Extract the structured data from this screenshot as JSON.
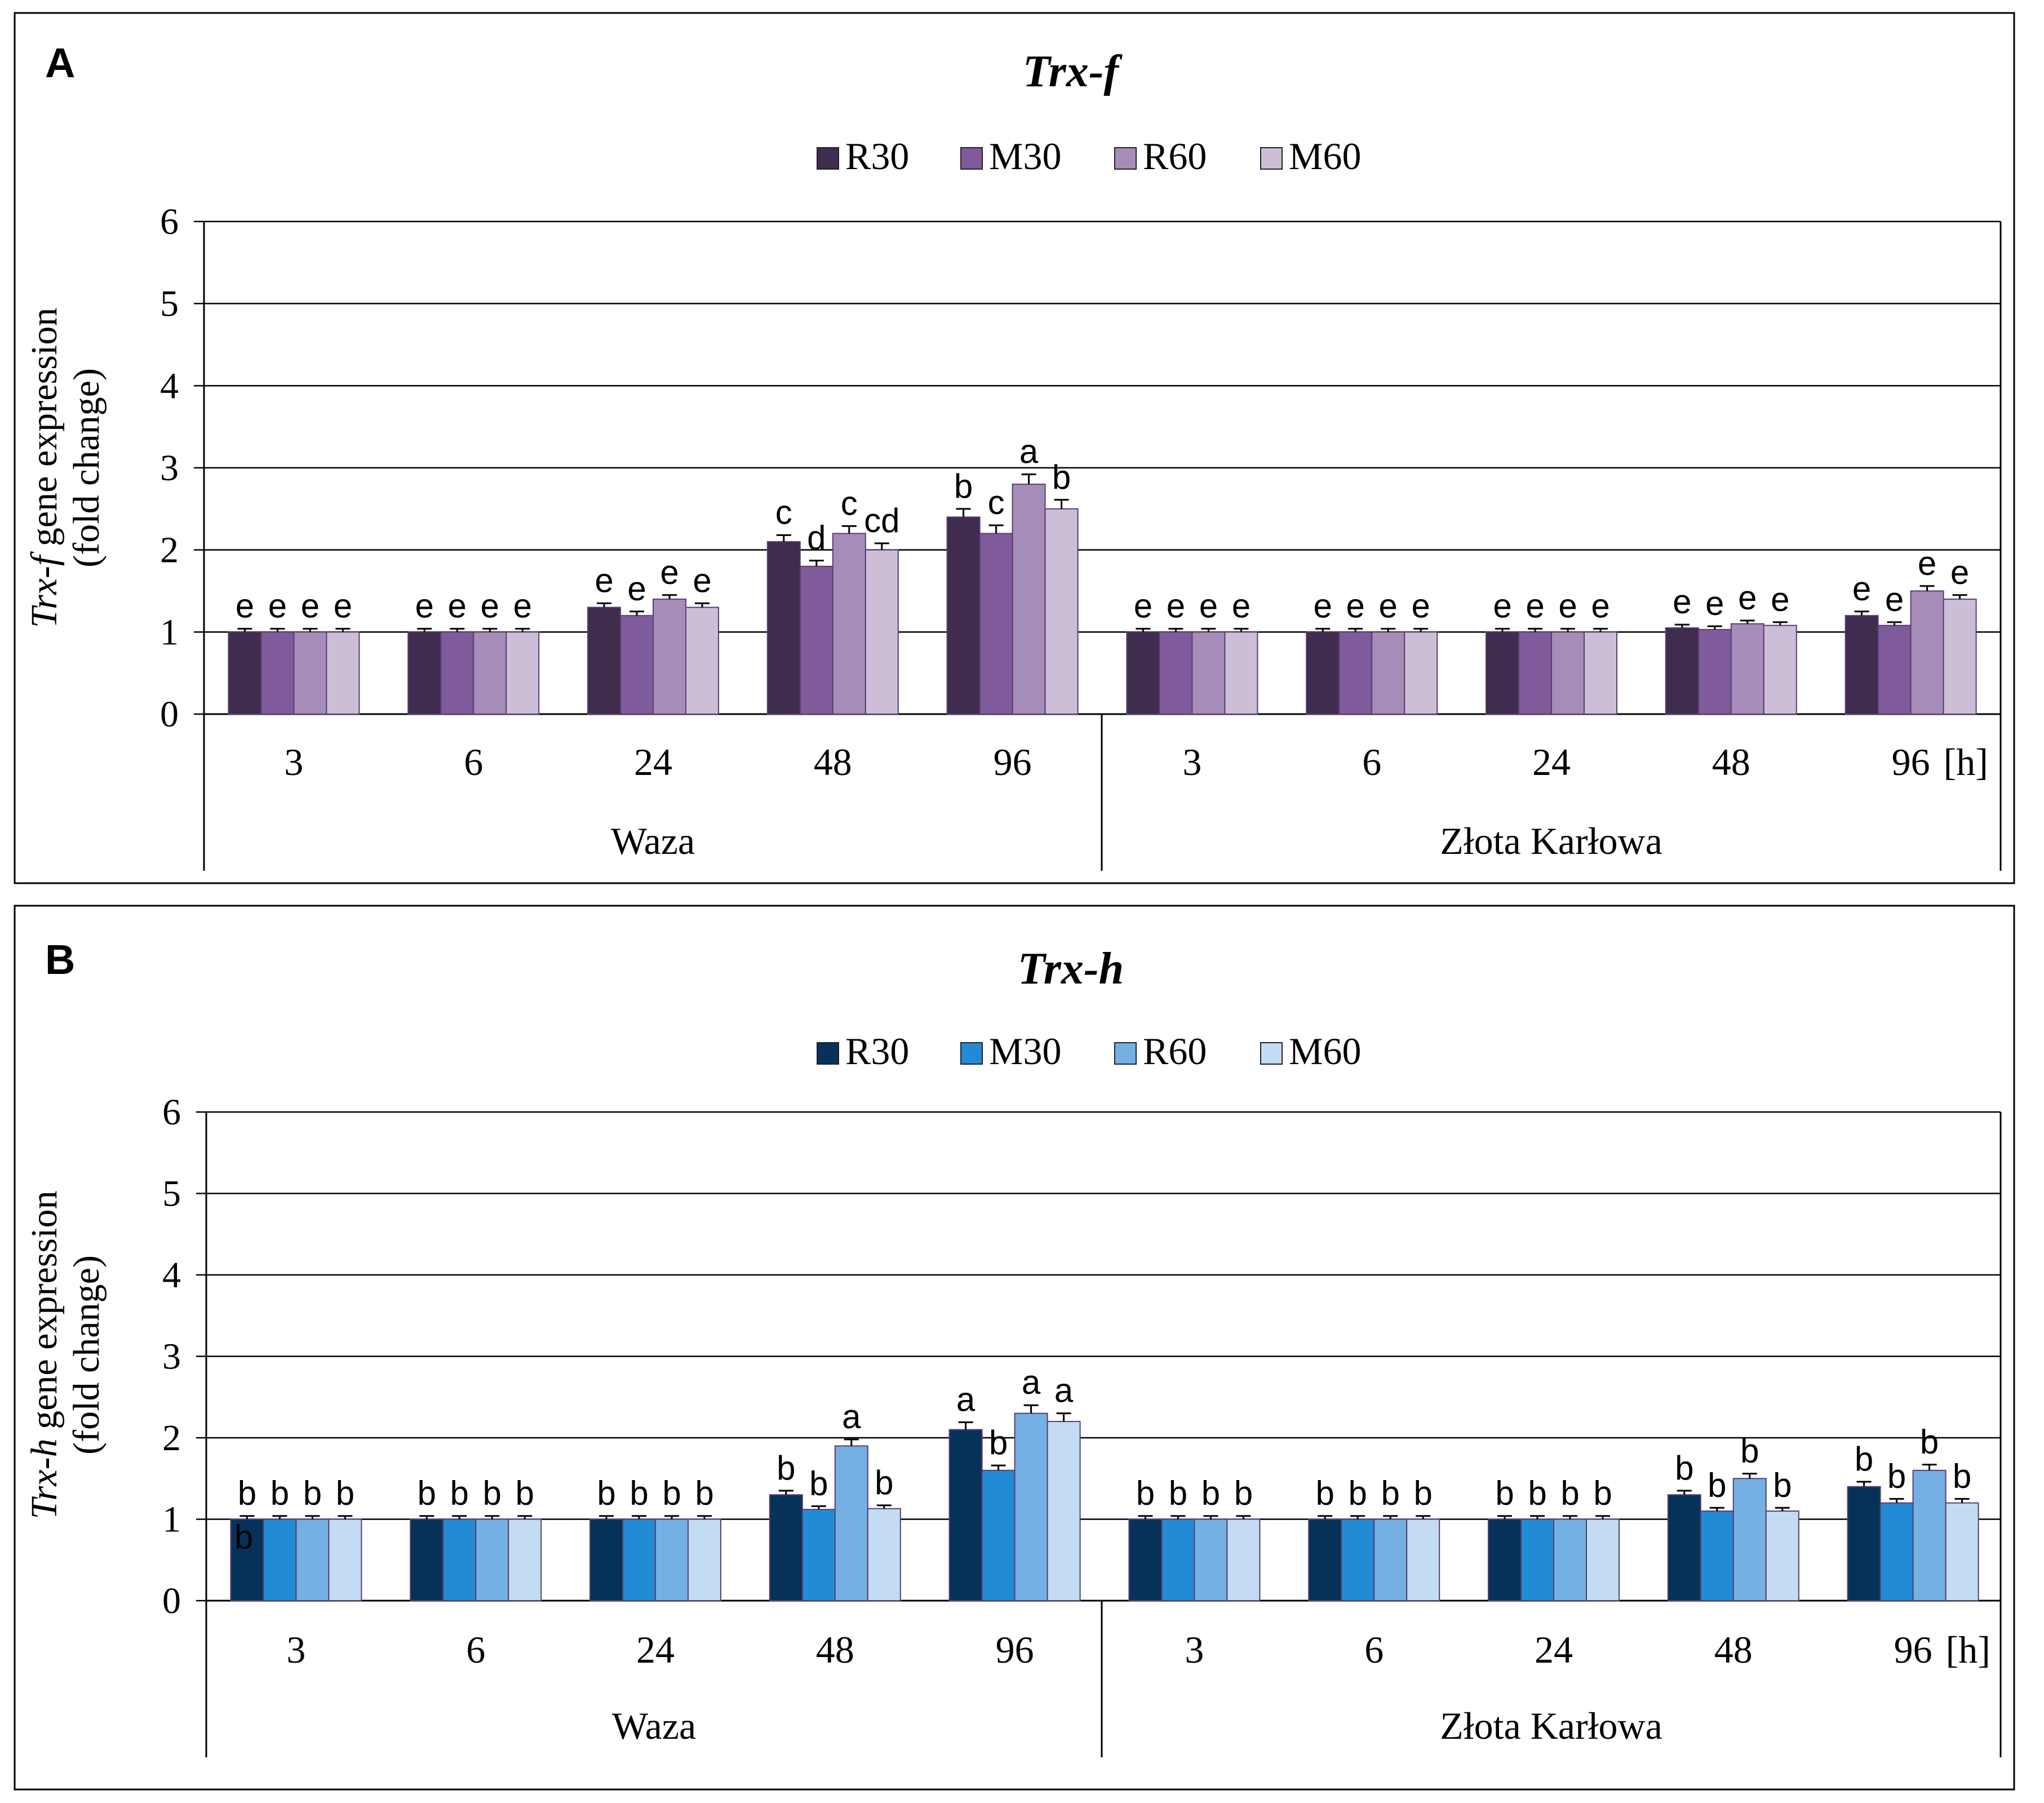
{
  "chart_data": [
    {
      "type": "bar",
      "panel_label": "A",
      "title": "Trx-f",
      "ylabel_italic": "Trx-f",
      "ylabel_rest": " gene expression",
      "ylabel_line2": "(fold change)",
      "ylim": [
        0,
        6
      ],
      "yticks": [
        "0",
        "1",
        "2",
        "3",
        "4",
        "5",
        "6"
      ],
      "grid": true,
      "legend_position": "top-center",
      "time_ticks": [
        "3",
        "6",
        "24",
        "48",
        "96",
        "3",
        "6",
        "24",
        "48",
        "96"
      ],
      "time_unit": "[h]",
      "groups": [
        "Waza",
        "Złota Karłowa"
      ],
      "series": [
        {
          "name": "R30",
          "color": "#3f2c4e",
          "values": [
            1.0,
            1.0,
            1.3,
            2.1,
            2.4,
            1.0,
            1.0,
            1.0,
            1.05,
            1.2
          ],
          "errors": [
            0.04,
            0.04,
            0.05,
            0.08,
            0.1,
            0.04,
            0.04,
            0.04,
            0.04,
            0.05
          ],
          "letters": [
            "e",
            "e",
            "e",
            "c",
            "b",
            "e",
            "e",
            "e",
            "e",
            "e"
          ]
        },
        {
          "name": "M30",
          "color": "#7f5b9c",
          "values": [
            1.0,
            1.0,
            1.2,
            1.8,
            2.2,
            1.0,
            1.0,
            1.0,
            1.03,
            1.08
          ],
          "errors": [
            0.04,
            0.04,
            0.05,
            0.07,
            0.1,
            0.04,
            0.04,
            0.04,
            0.04,
            0.04
          ],
          "letters": [
            "e",
            "e",
            "e",
            "d",
            "c",
            "e",
            "e",
            "e",
            "e",
            "e"
          ]
        },
        {
          "name": "R60",
          "color": "#a68db9",
          "values": [
            1.0,
            1.0,
            1.4,
            2.2,
            2.8,
            1.0,
            1.0,
            1.0,
            1.1,
            1.5
          ],
          "errors": [
            0.04,
            0.04,
            0.05,
            0.09,
            0.12,
            0.04,
            0.04,
            0.04,
            0.04,
            0.06
          ],
          "letters": [
            "e",
            "e",
            "e",
            "c",
            "a",
            "e",
            "e",
            "e",
            "e",
            "e"
          ]
        },
        {
          "name": "M60",
          "color": "#cdbed8",
          "values": [
            1.0,
            1.0,
            1.3,
            2.0,
            2.5,
            1.0,
            1.0,
            1.0,
            1.08,
            1.4
          ],
          "errors": [
            0.04,
            0.04,
            0.05,
            0.08,
            0.11,
            0.04,
            0.04,
            0.04,
            0.04,
            0.05
          ],
          "letters": [
            "e",
            "e",
            "e",
            "cd",
            "b",
            "e",
            "e",
            "e",
            "e",
            "e"
          ]
        }
      ]
    },
    {
      "type": "bar",
      "panel_label": "B",
      "title": "Trx-h",
      "ylabel_italic": "Trx-h",
      "ylabel_rest": " gene expression",
      "ylabel_line2": "(fold change)",
      "ylim": [
        0,
        6
      ],
      "yticks": [
        "0",
        "1",
        "2",
        "3",
        "4",
        "5",
        "6"
      ],
      "grid": true,
      "legend_position": "top-center",
      "time_ticks": [
        "3",
        "6",
        "24",
        "48",
        "96",
        "3",
        "6",
        "24",
        "48",
        "96"
      ],
      "time_unit": "[h]",
      "groups": [
        "Waza",
        "Złota Karłowa"
      ],
      "series": [
        {
          "name": "R30",
          "color": "#06325a",
          "values": [
            1.0,
            1.0,
            1.0,
            1.3,
            2.1,
            1.0,
            1.0,
            1.0,
            1.3,
            1.4
          ],
          "errors": [
            0.04,
            0.04,
            0.04,
            0.05,
            0.09,
            0.04,
            0.04,
            0.04,
            0.05,
            0.06
          ],
          "letters": [
            "b",
            "b",
            "b",
            "b",
            "a",
            "b",
            "b",
            "b",
            "b",
            "b"
          ]
        },
        {
          "name": "M30",
          "color": "#218bd6",
          "values": [
            1.0,
            1.0,
            1.0,
            1.12,
            1.6,
            1.0,
            1.0,
            1.0,
            1.1,
            1.2
          ],
          "errors": [
            0.04,
            0.04,
            0.04,
            0.04,
            0.06,
            0.04,
            0.04,
            0.04,
            0.04,
            0.05
          ],
          "letters": [
            "b",
            "b",
            "b",
            "b",
            "b",
            "b",
            "b",
            "b",
            "b",
            "b"
          ]
        },
        {
          "name": "R60",
          "color": "#74b0e3",
          "values": [
            1.0,
            1.0,
            1.0,
            1.9,
            2.3,
            1.0,
            1.0,
            1.0,
            1.5,
            1.6
          ],
          "errors": [
            0.04,
            0.04,
            0.04,
            0.08,
            0.1,
            0.04,
            0.04,
            0.04,
            0.06,
            0.07
          ],
          "letters": [
            "b",
            "b",
            "b",
            "a",
            "a",
            "b",
            "b",
            "b",
            "b",
            "b"
          ]
        },
        {
          "name": "M60",
          "color": "#c3dcf3",
          "values": [
            1.0,
            1.0,
            1.0,
            1.13,
            2.2,
            1.0,
            1.0,
            1.0,
            1.1,
            1.2
          ],
          "errors": [
            0.04,
            0.04,
            0.04,
            0.04,
            0.1,
            0.04,
            0.04,
            0.04,
            0.04,
            0.05
          ],
          "letters": [
            "b",
            "b",
            "b",
            "b",
            "a",
            "b",
            "b",
            "b",
            "b",
            "b"
          ]
        }
      ],
      "extra_annotations": [
        {
          "text": "b",
          "series": 0,
          "bar_index": 0
        }
      ]
    }
  ]
}
